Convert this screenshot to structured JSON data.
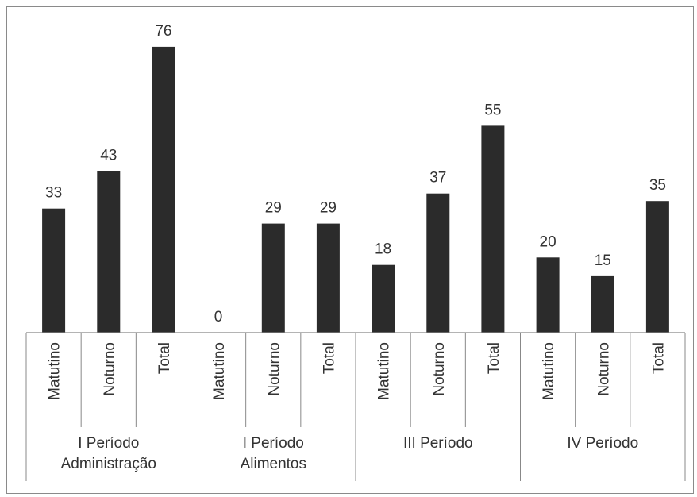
{
  "chart_data": {
    "type": "bar",
    "title": "",
    "xlabel": "",
    "ylabel": "",
    "ylim": [
      0,
      80
    ],
    "grid": false,
    "legend": "none",
    "bar_color": "#2b2b2b",
    "groups": [
      {
        "label_lines": [
          "I Período",
          "Administração"
        ],
        "categories": [
          "Matutino",
          "Noturno",
          "Total"
        ],
        "values": [
          33,
          43,
          76
        ]
      },
      {
        "label_lines": [
          "I Período",
          "Alimentos"
        ],
        "categories": [
          "Matutino",
          "Noturno",
          "Total"
        ],
        "values": [
          0,
          29,
          29
        ]
      },
      {
        "label_lines": [
          "III Período"
        ],
        "categories": [
          "Matutino",
          "Noturno",
          "Total"
        ],
        "values": [
          18,
          37,
          55
        ]
      },
      {
        "label_lines": [
          "IV Período"
        ],
        "categories": [
          "Matutino",
          "Noturno",
          "Total"
        ],
        "values": [
          20,
          15,
          35
        ]
      }
    ]
  }
}
